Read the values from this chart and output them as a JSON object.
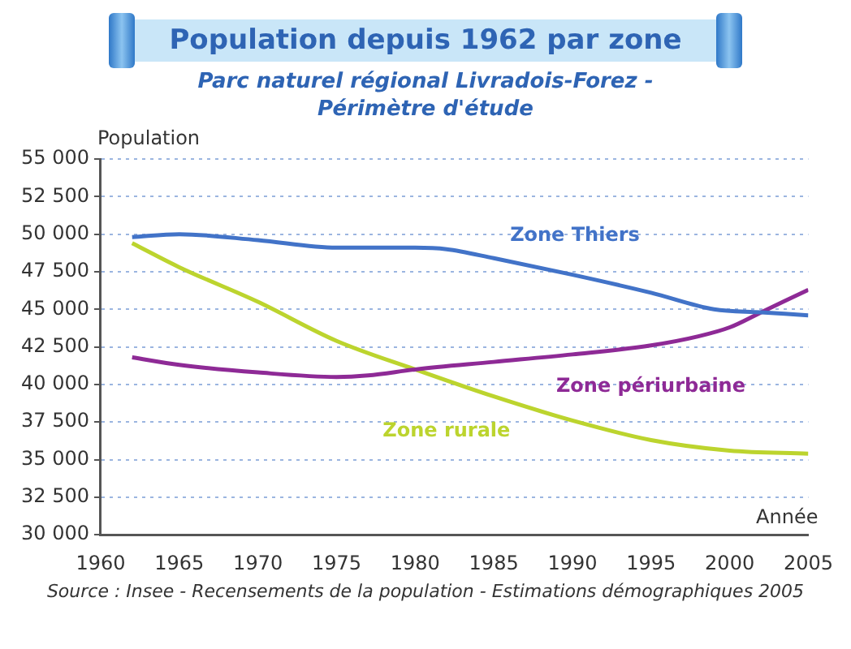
{
  "chart_data": {
    "type": "line",
    "title": "Population depuis 1962 par zone",
    "subtitle": "Parc naturel régional Livradois-Forez -\nPérimètre d'étude",
    "xlabel": "Année",
    "ylabel": "Population",
    "annotations": [
      "Source : Insee - Recensements de la population - Estimations démographiques 2005"
    ],
    "xlim": [
      1960,
      2005
    ],
    "xticks": [
      1960,
      1965,
      1970,
      1975,
      1980,
      1985,
      1990,
      1995,
      2000,
      2005
    ],
    "ylim": [
      30000,
      55000
    ],
    "yticks": [
      {
        "value": 30000,
        "label": "30 000"
      },
      {
        "value": 32500,
        "label": "32 500"
      },
      {
        "value": 35000,
        "label": "35 000"
      },
      {
        "value": 37500,
        "label": "37 500"
      },
      {
        "value": 40000,
        "label": "40 000"
      },
      {
        "value": 42500,
        "label": "42 500"
      },
      {
        "value": 45000,
        "label": "45 000"
      },
      {
        "value": 47500,
        "label": "47 500"
      },
      {
        "value": 50000,
        "label": "50 000"
      },
      {
        "value": 52500,
        "label": "52 500"
      },
      {
        "value": 55000,
        "label": "55 000"
      }
    ],
    "grid": "y",
    "legend": false,
    "marker": "none",
    "line_style": "solid",
    "series": [
      {
        "name": "Zone Thiers",
        "color": "#4273c8",
        "x": [
          1962,
          1965,
          1970,
          1975,
          1980,
          1982,
          1985,
          1990,
          1995,
          1999,
          2002,
          2005
        ],
        "values": [
          49800,
          50000,
          49600,
          49100,
          49100,
          49000,
          48400,
          47300,
          46100,
          45000,
          44800,
          44600
        ]
      },
      {
        "name": "Zone périurbaine",
        "color": "#8e2a96",
        "x": [
          1962,
          1965,
          1970,
          1975,
          1977,
          1980,
          1985,
          1990,
          1995,
          1998,
          2000,
          2002,
          2005
        ],
        "values": [
          41800,
          41300,
          40800,
          40500,
          40600,
          41000,
          41500,
          42000,
          42600,
          43200,
          43800,
          44800,
          46300
        ]
      },
      {
        "name": "Zone rurale",
        "color": "#bcd42e",
        "x": [
          1962,
          1965,
          1970,
          1975,
          1980,
          1985,
          1990,
          1995,
          2000,
          2005
        ],
        "values": [
          49400,
          47800,
          45500,
          42900,
          41000,
          39200,
          37600,
          36300,
          35600,
          35400
        ]
      }
    ]
  }
}
